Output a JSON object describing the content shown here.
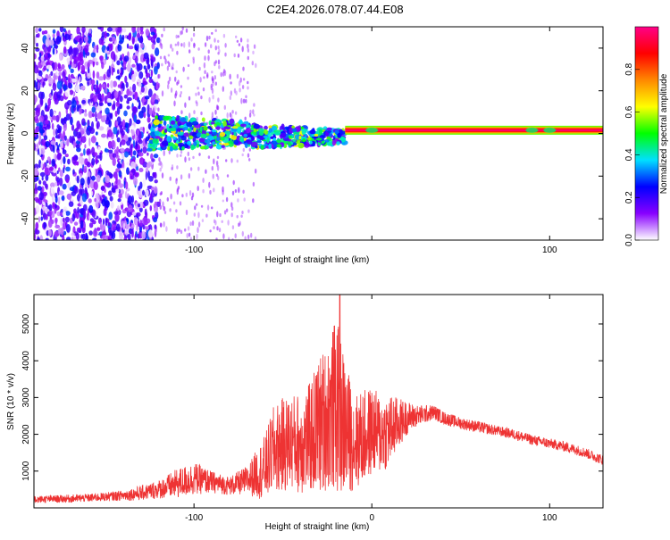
{
  "page": {
    "title": "C2E4.2026.078.07.44.E08"
  },
  "chart_data": [
    {
      "type": "heatmap",
      "name": "spectrogram",
      "title": "C2E4.2026.078.07.44.E08",
      "xlabel": "Height of straight line (km)",
      "ylabel": "Frequency (Hz)",
      "xlim": [
        -190,
        130
      ],
      "ylim": [
        -50,
        50
      ],
      "x_ticks": [
        -100,
        0,
        100
      ],
      "x_tick_labels": [
        "-100",
        "",
        "100"
      ],
      "y_ticks": [
        -40,
        -20,
        0,
        20,
        40
      ],
      "y_tick_labels": [
        "-40",
        "-20",
        "0",
        "20",
        "40"
      ],
      "colorbar": {
        "label": "Normalized spectral amplitude",
        "range": [
          0,
          1
        ],
        "ticks": [
          0.0,
          0.2,
          0.4,
          0.6,
          0.8
        ],
        "tick_labels": [
          "0.0",
          "0.2",
          "0.4",
          "0.6",
          "0.8"
        ],
        "colormap": [
          "#ffffff",
          "#8800ff",
          "#0000ff",
          "#00e0ff",
          "#00ff00",
          "#ffff00",
          "#ff8800",
          "#ff0000",
          "#ff0088"
        ]
      },
      "regions": [
        {
          "description": "broadband noise",
          "x_range": [
            -190,
            -120
          ],
          "freq_range": [
            -50,
            50
          ],
          "amplitude": 0.15
        },
        {
          "description": "sparse noise",
          "x_range": [
            -120,
            -65
          ],
          "freq_range": [
            -50,
            50
          ],
          "amplitude": 0.05
        },
        {
          "description": "emerging signal band",
          "x_range": [
            -125,
            -15
          ],
          "freq_range": [
            -8,
            8
          ],
          "amplitude": 0.35
        },
        {
          "description": "coherent carrier",
          "x_range": [
            -15,
            130
          ],
          "freq_center": 1.5,
          "amplitude": 0.9
        }
      ]
    },
    {
      "type": "line",
      "name": "snr",
      "xlabel": "Height of straight line (km)",
      "ylabel": "SNR (10 * v/v)",
      "xlim": [
        -190,
        130
      ],
      "ylim": [
        0,
        5800
      ],
      "x_ticks": [
        -100,
        0,
        100
      ],
      "x_tick_labels": [
        "-100",
        "0",
        "100"
      ],
      "y_ticks": [
        1000,
        2000,
        3000,
        4000,
        5000
      ],
      "y_tick_labels": [
        "1000",
        "2000",
        "3000",
        "4000",
        "5000"
      ],
      "series": [
        {
          "name": "SNR",
          "color": "#ee3333",
          "x": [
            -190,
            -180,
            -170,
            -160,
            -150,
            -140,
            -130,
            -120,
            -110,
            -100,
            -90,
            -80,
            -70,
            -60,
            -55,
            -50,
            -45,
            -40,
            -35,
            -30,
            -25,
            -20,
            -15,
            -10,
            -5,
            0,
            5,
            10,
            15,
            20,
            25,
            30,
            35,
            40,
            50,
            60,
            70,
            80,
            90,
            100,
            110,
            120,
            130
          ],
          "values": [
            230,
            240,
            250,
            270,
            300,
            340,
            400,
            500,
            650,
            800,
            700,
            600,
            750,
            1100,
            1600,
            1700,
            1800,
            1750,
            1900,
            2200,
            2500,
            2800,
            2200,
            1800,
            1900,
            2100,
            2000,
            2100,
            2300,
            2450,
            2500,
            2550,
            2600,
            2450,
            2300,
            2200,
            2100,
            2000,
            1850,
            1750,
            1650,
            1500,
            1300
          ],
          "spread": [
            100,
            100,
            110,
            110,
            120,
            140,
            200,
            250,
            400,
            450,
            300,
            250,
            400,
            900,
            1200,
            1300,
            1300,
            1400,
            1500,
            1900,
            2000,
            2400,
            1900,
            1300,
            1300,
            1200,
            1100,
            1000,
            700,
            450,
            300,
            250,
            200,
            180,
            160,
            160,
            140,
            140,
            140,
            140,
            140,
            140,
            140
          ],
          "peak": {
            "x": -18,
            "value": 5800
          }
        }
      ]
    }
  ]
}
